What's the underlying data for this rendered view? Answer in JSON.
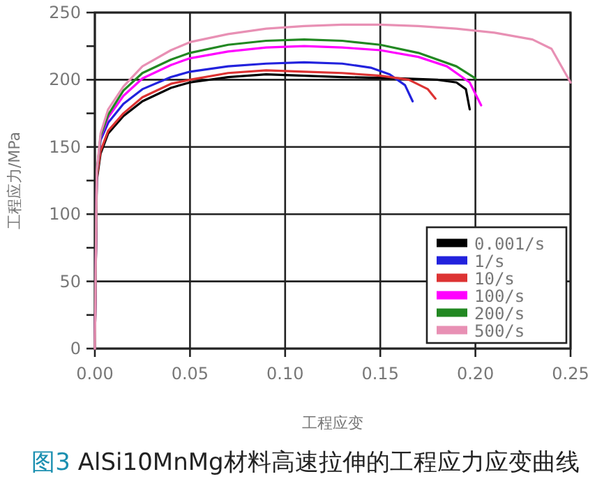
{
  "chart_data": {
    "type": "line",
    "title": "图3 AlSi10MnMg材料高速拉伸的工程应力应变曲线",
    "xlabel": "工程应变",
    "ylabel": "工程应力/MPa",
    "xlim": [
      0,
      0.25
    ],
    "ylim": [
      0,
      250
    ],
    "xticks": [
      {
        "value": 0,
        "label": "0.00"
      },
      {
        "value": 0.05,
        "label": "0.05"
      },
      {
        "value": 0.1,
        "label": "0.10"
      },
      {
        "value": 0.15,
        "label": "0.15"
      },
      {
        "value": 0.2,
        "label": "0.20"
      },
      {
        "value": 0.25,
        "label": "0.25"
      }
    ],
    "yticks": [
      0,
      {
        "value": 25,
        "label": null
      },
      50,
      {
        "value": 75,
        "label": null
      },
      100,
      {
        "value": 125,
        "label": null
      },
      150,
      {
        "value": 175,
        "label": null
      },
      200,
      {
        "value": 225,
        "label": null
      },
      250
    ],
    "grid": true,
    "legend": "bottom right",
    "marker": "none",
    "line_style": "solid",
    "series": [
      {
        "name": "0.001/s",
        "color": "#000000",
        "x": [
          0,
          0.001,
          0.003,
          0.007,
          0.015,
          0.025,
          0.04,
          0.05,
          0.07,
          0.09,
          0.11,
          0.13,
          0.16,
          0.18,
          0.19,
          0.195,
          0.197
        ],
        "values": [
          0,
          125,
          145,
          160,
          173,
          184,
          194,
          198,
          202,
          204,
          203,
          202,
          201,
          200,
          198,
          193,
          178
        ]
      },
      {
        "name": "1/s",
        "color": "#2222dd",
        "x": [
          0,
          0.001,
          0.003,
          0.007,
          0.015,
          0.025,
          0.04,
          0.05,
          0.07,
          0.09,
          0.11,
          0.13,
          0.145,
          0.155,
          0.163,
          0.167
        ],
        "values": [
          0,
          130,
          155,
          168,
          182,
          193,
          202,
          206,
          210,
          212,
          213,
          212,
          209,
          204,
          196,
          184
        ]
      },
      {
        "name": "10/s",
        "color": "#dd3333",
        "x": [
          0,
          0.001,
          0.003,
          0.007,
          0.015,
          0.025,
          0.04,
          0.05,
          0.07,
          0.09,
          0.11,
          0.13,
          0.15,
          0.165,
          0.175,
          0.179
        ],
        "values": [
          0,
          127,
          147,
          162,
          175,
          187,
          197,
          200,
          205,
          207,
          206,
          205,
          203,
          200,
          193,
          186
        ]
      },
      {
        "name": "100/s",
        "color": "#ff00ff",
        "x": [
          0,
          0.001,
          0.003,
          0.007,
          0.015,
          0.025,
          0.04,
          0.05,
          0.07,
          0.09,
          0.11,
          0.13,
          0.15,
          0.17,
          0.185,
          0.197,
          0.203
        ],
        "values": [
          0,
          130,
          157,
          172,
          188,
          201,
          211,
          216,
          221,
          224,
          225,
          224,
          222,
          217,
          210,
          198,
          181
        ]
      },
      {
        "name": "200/s",
        "color": "#228822",
        "x": [
          0,
          0.001,
          0.003,
          0.007,
          0.015,
          0.025,
          0.04,
          0.05,
          0.07,
          0.09,
          0.11,
          0.13,
          0.15,
          0.17,
          0.19,
          0.2
        ],
        "values": [
          0,
          130,
          158,
          174,
          192,
          205,
          215,
          220,
          226,
          229,
          230,
          229,
          226,
          220,
          210,
          201
        ]
      },
      {
        "name": "500/s",
        "color": "#e890b4",
        "x": [
          0,
          0.001,
          0.003,
          0.007,
          0.015,
          0.025,
          0.04,
          0.05,
          0.07,
          0.09,
          0.11,
          0.13,
          0.15,
          0.17,
          0.19,
          0.21,
          0.23,
          0.24,
          0.25
        ],
        "values": [
          0,
          132,
          160,
          178,
          195,
          210,
          222,
          228,
          234,
          238,
          240,
          241,
          241,
          240,
          238,
          235,
          230,
          223,
          198
        ]
      }
    ]
  }
}
